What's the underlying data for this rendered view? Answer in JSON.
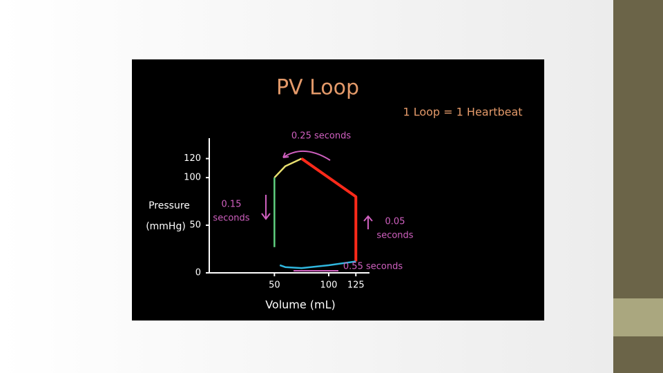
{
  "chart_data": {
    "type": "line",
    "title": "PV Loop",
    "subtitle": "1 Loop = 1 Heartbeat",
    "xlabel": "Volume (mL)",
    "ylabel": [
      "Pressure",
      "(mmHg)"
    ],
    "annotations": [
      [
        "0.25 seconds"
      ],
      [
        "0.15",
        "seconds"
      ],
      [
        "0.05",
        "seconds"
      ],
      [
        "0.55 seconds"
      ]
    ],
    "xlim": [
      -10,
      135
    ],
    "xticks": [
      50,
      100,
      125
    ],
    "ylim": [
      0,
      140
    ],
    "yticks": [
      0,
      50,
      100,
      120
    ],
    "series": [
      {
        "color": "#e8e070",
        "x": [
          50,
          60,
          75
        ],
        "values": [
          100,
          112,
          120
        ]
      },
      {
        "color": "#ff2a1a",
        "x": [
          75,
          100,
          125,
          125
        ],
        "values": [
          120,
          100,
          80,
          12
        ]
      },
      {
        "color": "#30b8e0",
        "x": [
          125,
          100,
          75,
          60,
          55
        ],
        "values": [
          12,
          8,
          5,
          6,
          8
        ]
      },
      {
        "color": "#60d080",
        "x": [
          50,
          50
        ],
        "values": [
          27,
          100
        ]
      }
    ]
  }
}
